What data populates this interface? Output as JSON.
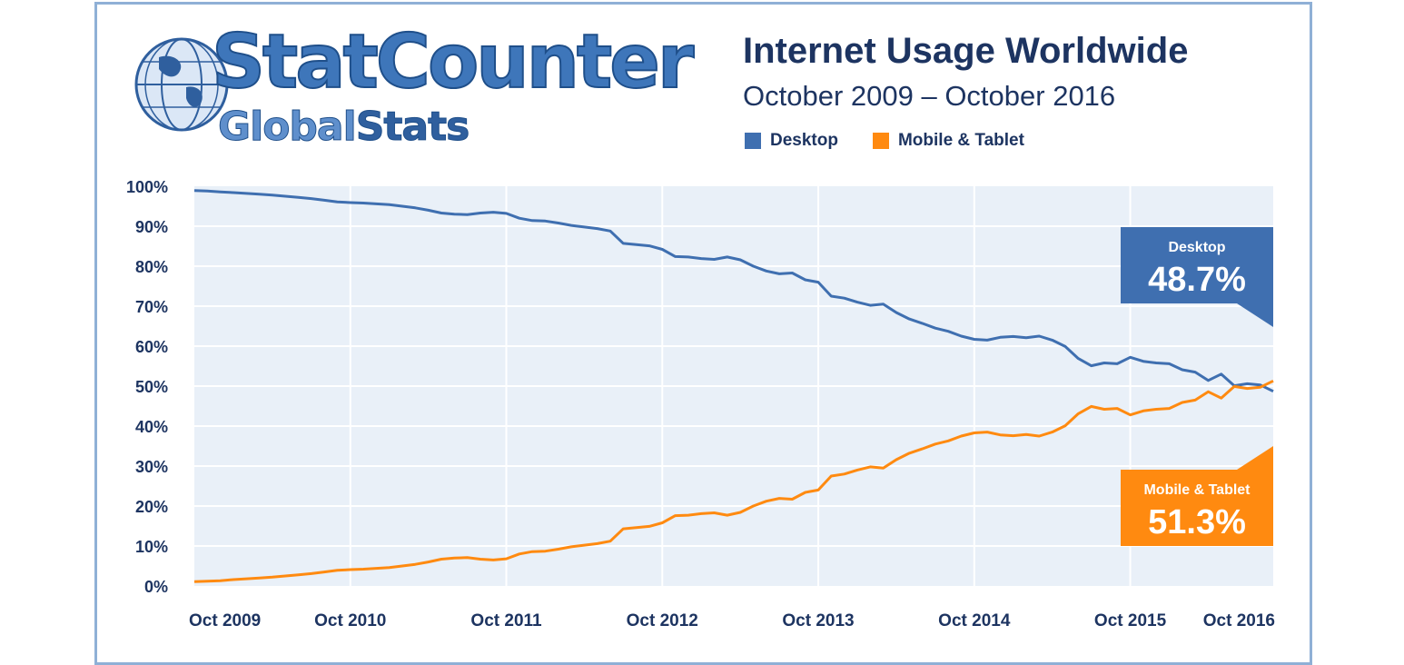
{
  "logo": {
    "line1": "StatCounter",
    "line2a": "Global",
    "line2b": "Stats"
  },
  "colors": {
    "desktop": "#3f6fb0",
    "mobile": "#ff8a10",
    "plot_bg": "#e9f0f8",
    "grid": "#ffffff",
    "text": "#1d3461"
  },
  "chart_data": {
    "type": "line",
    "title": "Internet Usage Worldwide",
    "subtitle": "October 2009 – October 2016",
    "x_labels": [
      "Oct 2009",
      "Oct 2010",
      "Oct 2011",
      "Oct 2012",
      "Oct 2013",
      "Oct 2014",
      "Oct 2015",
      "Oct 2016"
    ],
    "y_ticks": [
      "0%",
      "10%",
      "20%",
      "30%",
      "40%",
      "50%",
      "60%",
      "70%",
      "80%",
      "90%",
      "100%"
    ],
    "ylim": [
      0,
      100
    ],
    "grid": true,
    "legend_position": "top",
    "series": [
      {
        "name": "Desktop",
        "callout_label": "Desktop",
        "callout_value": "48.7%",
        "values": [
          98.9,
          98.8,
          98.6,
          98.4,
          98.2,
          98.0,
          97.8,
          97.5,
          97.2,
          96.9,
          96.5,
          96.1,
          95.9,
          95.8,
          95.6,
          95.4,
          95.0,
          94.6,
          94.0,
          93.3,
          93.0,
          92.9,
          93.3,
          93.5,
          93.2,
          92.0,
          91.4,
          91.3,
          90.8,
          90.2,
          89.8,
          89.4,
          88.8,
          85.7,
          85.4,
          85.1,
          84.2,
          82.4,
          82.3,
          81.9,
          81.7,
          82.3,
          81.6,
          80.0,
          78.8,
          78.1,
          78.3,
          76.6,
          76.0,
          72.5,
          72.0,
          71.0,
          70.2,
          70.5,
          68.4,
          66.8,
          65.7,
          64.5,
          63.7,
          62.5,
          61.7,
          61.5,
          62.2,
          62.4,
          62.1,
          62.5,
          61.5,
          59.9,
          56.9,
          55.1,
          55.8,
          55.6,
          57.2,
          56.2,
          55.8,
          55.6,
          54.1,
          53.5,
          51.4,
          53.0,
          50.1,
          50.6,
          50.3,
          48.7
        ]
      },
      {
        "name": "Mobile & Tablet",
        "callout_label": "Mobile & Tablet",
        "callout_value": "51.3%",
        "values": [
          1.1,
          1.2,
          1.3,
          1.6,
          1.8,
          2.0,
          2.2,
          2.5,
          2.8,
          3.1,
          3.5,
          3.9,
          4.1,
          4.2,
          4.4,
          4.6,
          5.0,
          5.4,
          6.0,
          6.7,
          7.0,
          7.1,
          6.7,
          6.5,
          6.8,
          8.0,
          8.6,
          8.7,
          9.2,
          9.8,
          10.2,
          10.6,
          11.2,
          14.3,
          14.6,
          14.9,
          15.8,
          17.6,
          17.7,
          18.1,
          18.3,
          17.7,
          18.4,
          20.0,
          21.2,
          21.9,
          21.7,
          23.4,
          24.0,
          27.5,
          28.0,
          29.0,
          29.8,
          29.5,
          31.6,
          33.2,
          34.3,
          35.5,
          36.3,
          37.5,
          38.3,
          38.5,
          37.8,
          37.6,
          37.9,
          37.5,
          38.5,
          40.1,
          43.1,
          44.9,
          44.2,
          44.4,
          42.8,
          43.8,
          44.2,
          44.4,
          45.9,
          46.5,
          48.6,
          47.0,
          49.9,
          49.4,
          49.7,
          51.3
        ]
      }
    ]
  }
}
